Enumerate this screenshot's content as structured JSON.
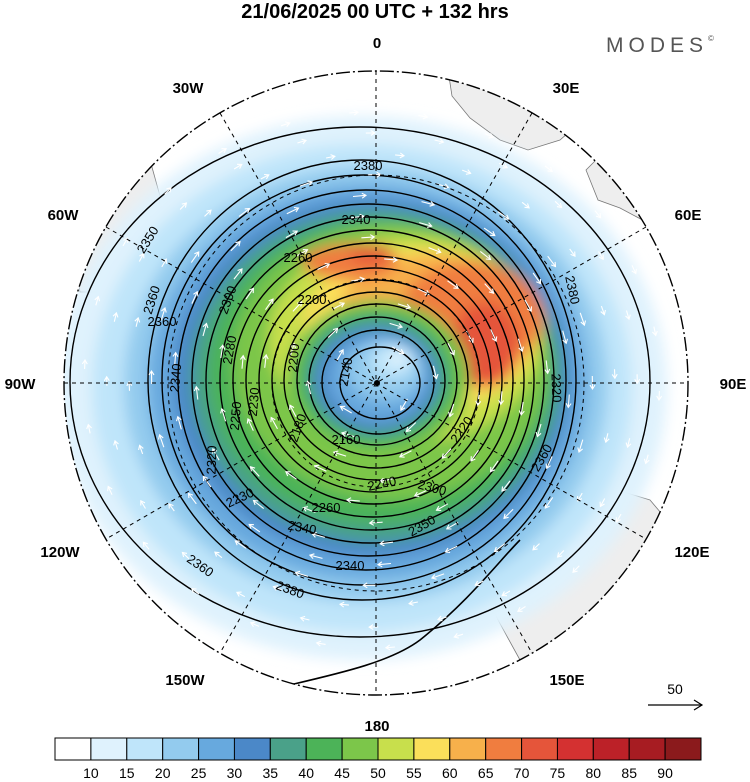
{
  "title": "21/06/2025  00 UTC  + 132 hrs",
  "brand": "MODES",
  "brand_mark": "©",
  "longitude_labels": {
    "top": "0",
    "top_left": "30W",
    "top_right": "30E",
    "upper_left": "60W",
    "upper_right": "60E",
    "left": "90W",
    "right": "90E",
    "lower_left": "120W",
    "lower_right": "120E",
    "bottom_left": "150W",
    "bottom_right": "150E",
    "bottom": "180"
  },
  "contour_labels": [
    "2380",
    "2340",
    "2350",
    "2360",
    "2260",
    "2380",
    "2300",
    "2200",
    "2360",
    "2280",
    "2140",
    "2200",
    "2340",
    "2230",
    "2320",
    "2250",
    "2180",
    "2220",
    "2160",
    "2240",
    "2300",
    "2320",
    "2360",
    "2230",
    "2260",
    "2340",
    "2350",
    "2340",
    "2360",
    "2380"
  ],
  "vector_reference": {
    "value": "50",
    "arrow": "reference-arrow"
  },
  "colorbar": {
    "ticks": [
      "10",
      "15",
      "20",
      "25",
      "30",
      "35",
      "40",
      "45",
      "50",
      "55",
      "60",
      "65",
      "70",
      "75",
      "80",
      "85",
      "90"
    ],
    "colors": [
      "#ffffff",
      "#dff2fd",
      "#bfe5fa",
      "#93cbee",
      "#67a9de",
      "#4b88c8",
      "#4aa189",
      "#4cb358",
      "#7cc64a",
      "#c8df4c",
      "#fbdf5a",
      "#f7b04b",
      "#f07d3f",
      "#e5553a",
      "#d43131",
      "#bc2128",
      "#a71c22",
      "#8b1a1c"
    ]
  }
}
